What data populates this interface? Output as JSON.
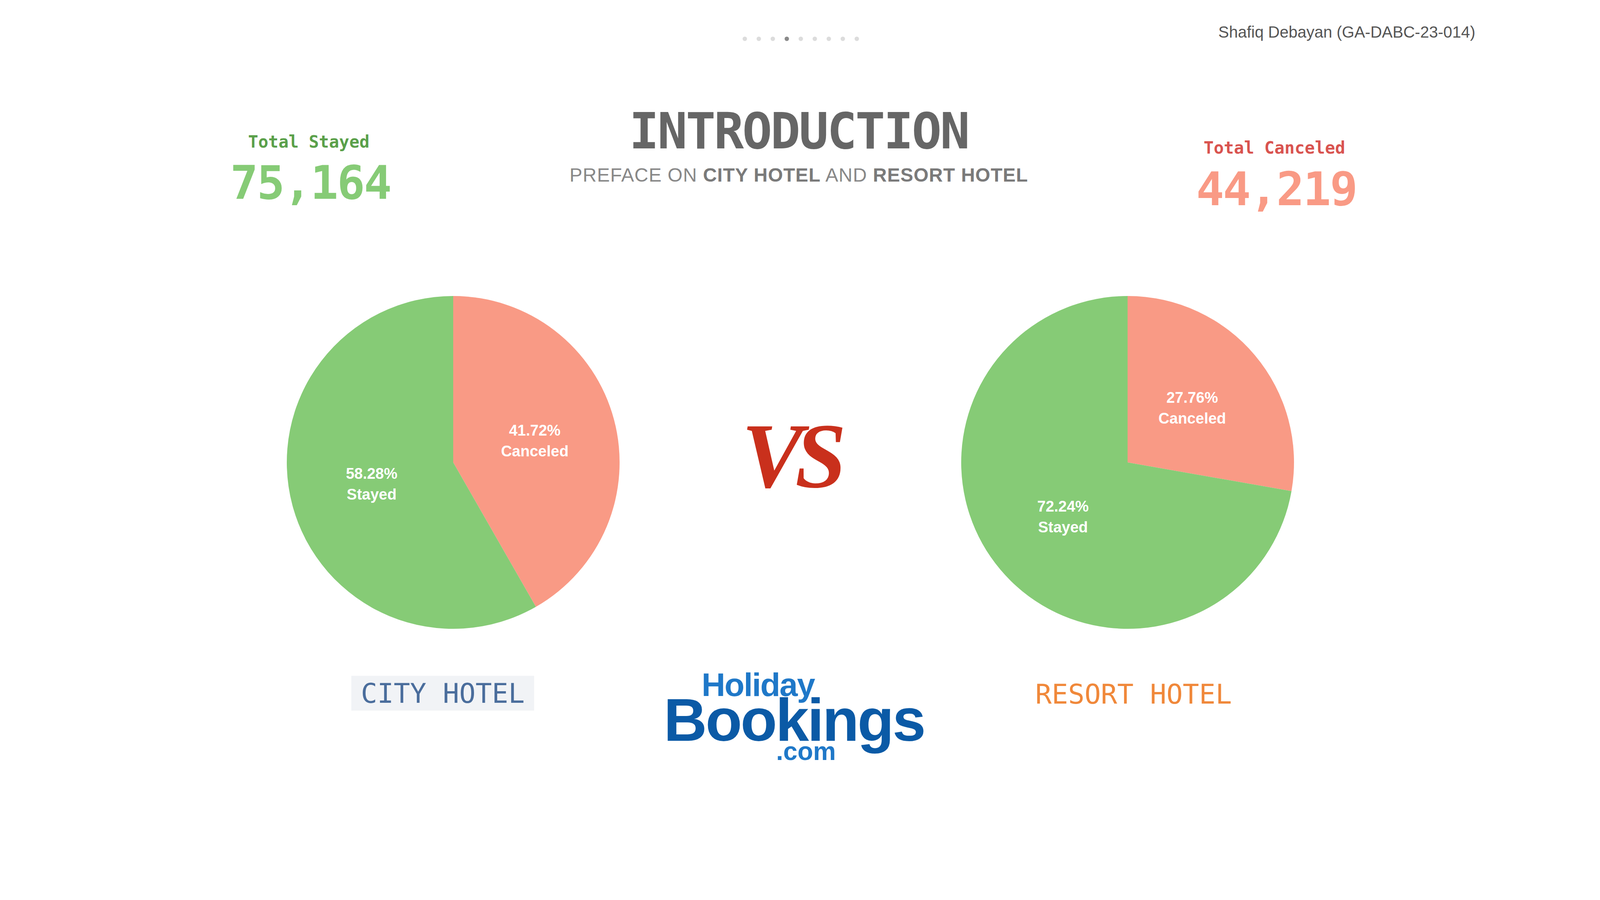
{
  "author": "Shafiq Debayan (GA-DABC-23-014)",
  "title": "INTRODUCTION",
  "subtitle": "PREFACE ON CITY HOTEL AND RESORT HOTEL",
  "kpis": [
    {
      "label": "Total Stayed",
      "value": 75164
    },
    {
      "label": "Total Canceled",
      "value": 44219
    }
  ],
  "vs": "VS",
  "logo": {
    "top": "Holiday",
    "main": "Bookings",
    "domain": ".com"
  },
  "chart_data": [
    {
      "type": "pie",
      "title": "CITY HOTEL",
      "categories": [
        "Canceled",
        "Stayed"
      ],
      "values": [
        41.72,
        58.28
      ],
      "value_labels": [
        "41.72%",
        "58.28%"
      ],
      "colors": [
        "#f99a85",
        "#86cb76"
      ],
      "data_labels": true
    },
    {
      "type": "pie",
      "title": "RESORT HOTEL",
      "categories": [
        "Canceled",
        "Stayed"
      ],
      "values": [
        27.76,
        72.24
      ],
      "value_labels": [
        "27.76%",
        "72.24%"
      ],
      "colors": [
        "#f99a85",
        "#86cb76"
      ],
      "data_labels": true
    }
  ]
}
